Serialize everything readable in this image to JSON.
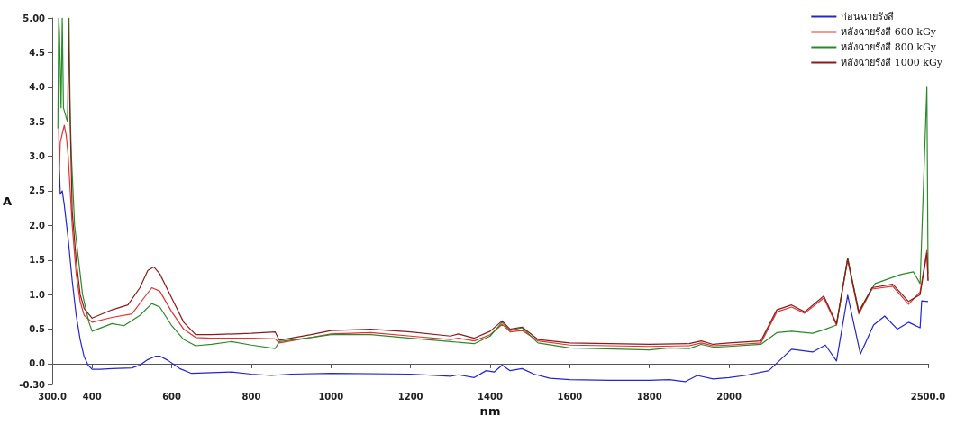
{
  "chart_data": {
    "type": "line",
    "xlabel": "nm",
    "ylabel": "A",
    "xlim": [
      300,
      2500
    ],
    "xticks": [
      {
        "value": 300,
        "label": "300.0"
      },
      400,
      600,
      800,
      1000,
      1200,
      1400,
      1600,
      1800,
      2000,
      {
        "value": 2500,
        "label": "2500.0"
      }
    ],
    "ylim": [
      -0.3,
      5
    ],
    "yticks": [
      {
        "value": -0.3,
        "label": "-0.30"
      },
      {
        "value": 0,
        "label": "0.0"
      },
      0.5,
      {
        "value": 1,
        "label": "1.0"
      },
      1.5,
      {
        "value": 2,
        "label": "2.0"
      },
      2.5,
      {
        "value": 3,
        "label": "3.0"
      },
      3.5,
      {
        "value": 4,
        "label": "4.0"
      },
      4.5,
      {
        "value": 5,
        "label": "5.00"
      }
    ],
    "legend": "top right",
    "marker": "none",
    "line_style": "solid",
    "series": [
      {
        "name": "ก่อนฉายรังสี",
        "color": "#2424d0",
        "x": [
          318,
          320,
          325,
          330,
          340,
          350,
          360,
          370,
          380,
          390,
          400,
          420,
          450,
          500,
          520,
          540,
          560,
          570,
          590,
          620,
          650,
          700,
          750,
          800,
          850,
          900,
          1000,
          1200,
          1300,
          1320,
          1360,
          1390,
          1410,
          1430,
          1450,
          1480,
          1510,
          1550,
          1600,
          1700,
          1800,
          1850,
          1890,
          1920,
          1960,
          2000,
          2040,
          2100,
          2157,
          2210,
          2242,
          2270,
          2298,
          2330,
          2363,
          2391,
          2423,
          2451,
          2480,
          2484,
          2500
        ],
        "values": [
          2.8,
          2.45,
          2.5,
          2.3,
          1.8,
          1.2,
          0.7,
          0.35,
          0.1,
          -0.02,
          -0.08,
          -0.08,
          -0.07,
          -0.06,
          -0.02,
          0.06,
          0.11,
          0.11,
          0.05,
          -0.07,
          -0.14,
          -0.13,
          -0.12,
          -0.15,
          -0.17,
          -0.15,
          -0.14,
          -0.15,
          -0.18,
          -0.16,
          -0.2,
          -0.1,
          -0.12,
          -0.02,
          -0.1,
          -0.07,
          -0.15,
          -0.21,
          -0.23,
          -0.24,
          -0.24,
          -0.23,
          -0.26,
          -0.17,
          -0.22,
          -0.2,
          -0.17,
          -0.1,
          0.21,
          0.17,
          0.27,
          0.04,
          0.99,
          0.14,
          0.56,
          0.69,
          0.5,
          0.6,
          0.52,
          0.91,
          0.9
        ]
      },
      {
        "name": "หลังฉายรังสี 600 kGy",
        "color": "#e03232",
        "x": [
          316,
          318,
          320,
          330,
          335,
          340,
          350,
          360,
          370,
          380,
          400,
          450,
          500,
          530,
          550,
          570,
          600,
          630,
          660,
          700,
          800,
          860,
          870,
          950,
          1000,
          1100,
          1200,
          1300,
          1320,
          1360,
          1400,
          1430,
          1450,
          1480,
          1520,
          1600,
          1800,
          1900,
          1930,
          1960,
          2000,
          2080,
          2120,
          2157,
          2190,
          2238,
          2270,
          2298,
          2326,
          2359,
          2411,
          2451,
          2480,
          2497,
          2500
        ],
        "values": [
          3.4,
          2.8,
          3.2,
          3.45,
          3.3,
          3.0,
          2.0,
          1.3,
          0.9,
          0.7,
          0.6,
          0.67,
          0.72,
          0.95,
          1.1,
          1.05,
          0.75,
          0.5,
          0.38,
          0.37,
          0.37,
          0.36,
          0.3,
          0.38,
          0.43,
          0.45,
          0.4,
          0.35,
          0.37,
          0.33,
          0.42,
          0.57,
          0.46,
          0.48,
          0.33,
          0.27,
          0.25,
          0.26,
          0.3,
          0.26,
          0.27,
          0.3,
          0.75,
          0.82,
          0.73,
          0.95,
          0.56,
          1.5,
          0.72,
          1.08,
          1.12,
          0.86,
          1.04,
          1.64,
          1.2
        ]
      },
      {
        "name": "หลังฉายรังสี 800 kGy",
        "color": "#2a8a2a",
        "x": [
          314,
          316,
          318,
          322,
          325,
          328,
          338,
          342,
          345,
          348,
          356,
          376,
          392,
          400,
          450,
          480,
          520,
          550,
          570,
          600,
          630,
          660,
          700,
          750,
          800,
          860,
          870,
          950,
          1000,
          1100,
          1200,
          1300,
          1360,
          1400,
          1430,
          1450,
          1480,
          1520,
          1600,
          1800,
          1850,
          1900,
          1930,
          1960,
          2000,
          2080,
          2120,
          2157,
          2210,
          2242,
          2270,
          2298,
          2326,
          2367,
          2431,
          2463,
          2480,
          2497,
          2500
        ],
        "values": [
          3.4,
          5.0,
          4.8,
          3.7,
          5.0,
          3.7,
          3.5,
          5.0,
          3.6,
          3.0,
          2.0,
          1.0,
          0.6,
          0.47,
          0.58,
          0.55,
          0.7,
          0.87,
          0.82,
          0.55,
          0.35,
          0.26,
          0.28,
          0.32,
          0.27,
          0.22,
          0.32,
          0.38,
          0.42,
          0.42,
          0.37,
          0.32,
          0.29,
          0.4,
          0.6,
          0.48,
          0.52,
          0.3,
          0.23,
          0.2,
          0.23,
          0.22,
          0.28,
          0.24,
          0.25,
          0.28,
          0.45,
          0.47,
          0.44,
          0.5,
          0.56,
          1.53,
          0.76,
          1.16,
          1.29,
          1.33,
          1.16,
          4.0,
          1.3
        ]
      },
      {
        "name": "หลังฉายรังสี 1000 kGy",
        "color": "#8b1a1a",
        "x": [
          340,
          345,
          350,
          360,
          370,
          380,
          400,
          450,
          490,
          520,
          540,
          555,
          570,
          600,
          630,
          660,
          700,
          800,
          860,
          870,
          950,
          1000,
          1100,
          1200,
          1300,
          1320,
          1360,
          1400,
          1430,
          1450,
          1480,
          1520,
          1600,
          1800,
          1900,
          1930,
          1960,
          2000,
          2080,
          2120,
          2157,
          2190,
          2238,
          2270,
          2298,
          2326,
          2359,
          2411,
          2451,
          2480,
          2497,
          2500
        ],
        "values": [
          5.0,
          3.5,
          2.2,
          1.5,
          1.0,
          0.8,
          0.66,
          0.78,
          0.85,
          1.1,
          1.35,
          1.4,
          1.3,
          0.95,
          0.6,
          0.42,
          0.42,
          0.44,
          0.46,
          0.34,
          0.42,
          0.48,
          0.5,
          0.46,
          0.4,
          0.43,
          0.37,
          0.47,
          0.62,
          0.5,
          0.53,
          0.35,
          0.3,
          0.28,
          0.29,
          0.33,
          0.28,
          0.3,
          0.33,
          0.78,
          0.85,
          0.75,
          0.98,
          0.58,
          1.52,
          0.74,
          1.1,
          1.15,
          0.9,
          1.0,
          1.6,
          1.2
        ]
      }
    ]
  }
}
